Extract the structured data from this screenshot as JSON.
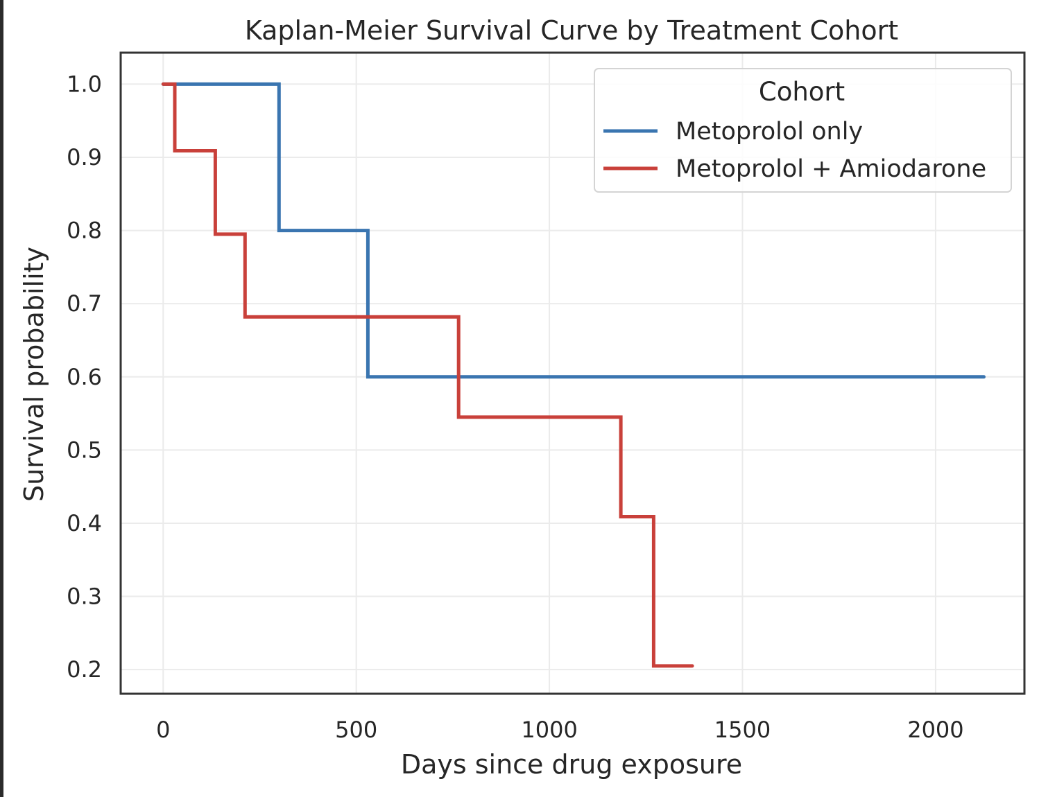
{
  "chart_data": {
    "type": "line",
    "step": "post",
    "title": "Kaplan-Meier Survival Curve by Treatment Cohort",
    "xlabel": "Days since drug exposure",
    "ylabel": "Survival probability",
    "xlim": [
      -110,
      2230
    ],
    "ylim": [
      0.167,
      1.043
    ],
    "xticks": [
      0,
      500,
      1000,
      1500,
      2000
    ],
    "yticks": [
      0.2,
      0.3,
      0.4,
      0.5,
      0.6,
      0.7,
      0.8,
      0.9,
      1.0
    ],
    "xtick_labels": [
      "0",
      "500",
      "1000",
      "1500",
      "2000"
    ],
    "ytick_labels": [
      "0.2",
      "0.3",
      "0.4",
      "0.5",
      "0.6",
      "0.7",
      "0.8",
      "0.9",
      "1.0"
    ],
    "grid": true,
    "legend": {
      "title": "Cohort",
      "position": "top-right"
    },
    "series": [
      {
        "name": "Metoprolol only",
        "color": "#3a75b0",
        "x": [
          0,
          300,
          530,
          2125
        ],
        "y": [
          1.0,
          0.8,
          0.6,
          0.6
        ]
      },
      {
        "name": "Metoprolol + Amiodarone",
        "color": "#c9403a",
        "x": [
          0,
          30,
          135,
          212,
          765,
          1185,
          1270,
          1370
        ],
        "y": [
          1.0,
          0.909,
          0.795,
          0.682,
          0.545,
          0.409,
          0.205,
          0.205
        ]
      }
    ]
  }
}
